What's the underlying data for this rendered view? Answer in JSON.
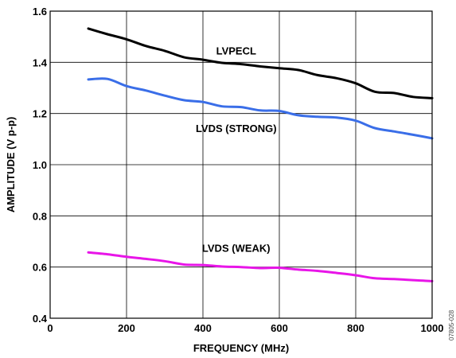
{
  "chart_data": {
    "type": "line",
    "title": "",
    "xlabel": "FREQUENCY (MHz)",
    "ylabel": "AMPLITUDE (V p-p)",
    "xlim": [
      0,
      1000
    ],
    "ylim": [
      0.4,
      1.6
    ],
    "x_ticks": [
      "0",
      "200",
      "400",
      "600",
      "800",
      "1000"
    ],
    "y_ticks": [
      "0.4",
      "0.6",
      "0.8",
      "1.0",
      "1.2",
      "1.4",
      "1.6"
    ],
    "grid": true,
    "legend": "none",
    "series": [
      {
        "name": "LVPECL",
        "color": "#000000",
        "x": [
          100,
          150,
          200,
          250,
          300,
          350,
          400,
          450,
          500,
          550,
          600,
          650,
          700,
          750,
          800,
          850,
          900,
          950,
          1000
        ],
        "y": [
          1.532,
          1.51,
          1.49,
          1.464,
          1.445,
          1.42,
          1.41,
          1.398,
          1.393,
          1.384,
          1.377,
          1.37,
          1.35,
          1.338,
          1.318,
          1.285,
          1.28,
          1.265,
          1.26
        ]
      },
      {
        "name": "LVDS (STRONG)",
        "color": "#3a6ee8",
        "x": [
          100,
          150,
          200,
          250,
          300,
          350,
          400,
          450,
          500,
          550,
          600,
          650,
          700,
          750,
          800,
          850,
          900,
          950,
          1000
        ],
        "y": [
          1.333,
          1.335,
          1.307,
          1.29,
          1.27,
          1.252,
          1.245,
          1.228,
          1.225,
          1.212,
          1.21,
          1.193,
          1.187,
          1.184,
          1.172,
          1.143,
          1.13,
          1.117,
          1.103
        ]
      },
      {
        "name": "LVDS (WEAK)",
        "color": "#e815e8",
        "x": [
          100,
          150,
          200,
          250,
          300,
          350,
          400,
          450,
          500,
          550,
          600,
          650,
          700,
          750,
          800,
          850,
          900,
          950,
          1000
        ],
        "y": [
          0.657,
          0.65,
          0.64,
          0.632,
          0.623,
          0.61,
          0.608,
          0.602,
          0.6,
          0.596,
          0.597,
          0.59,
          0.585,
          0.577,
          0.568,
          0.556,
          0.553,
          0.549,
          0.545
        ]
      }
    ]
  },
  "figure_id": "07805-028"
}
